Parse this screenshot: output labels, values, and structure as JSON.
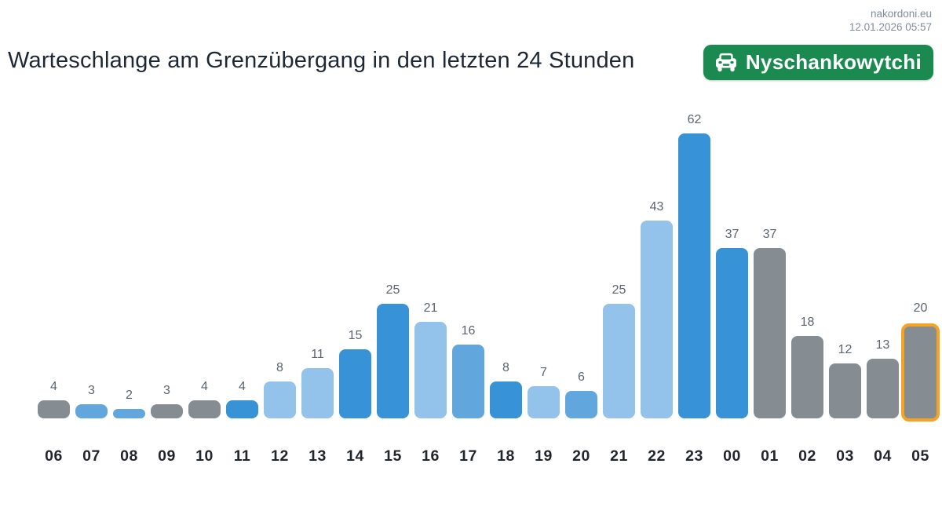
{
  "header": {
    "site": "nakordoni.eu",
    "timestamp": "12.01.2026 05:57"
  },
  "title": "Warteschlange am Grenzübergang in den letzten 24 Stunden",
  "badge": {
    "label": "Nyschankowytchi",
    "icon": "car-icon",
    "background_color": "#1a8a50",
    "text_color": "#ffffff"
  },
  "chart_data": {
    "type": "bar",
    "title": "Warteschlange am Grenzübergang in den letzten 24 Stunden",
    "xlabel": "",
    "ylabel": "",
    "ylim": [
      0,
      62
    ],
    "grid": false,
    "legend": false,
    "categories": [
      "06",
      "07",
      "08",
      "09",
      "10",
      "11",
      "12",
      "13",
      "14",
      "15",
      "16",
      "17",
      "18",
      "19",
      "20",
      "21",
      "22",
      "23",
      "00",
      "01",
      "02",
      "03",
      "04",
      "05"
    ],
    "values": [
      4,
      3,
      2,
      3,
      4,
      4,
      8,
      11,
      15,
      25,
      21,
      16,
      8,
      7,
      6,
      25,
      43,
      62,
      37,
      37,
      18,
      12,
      13,
      20
    ],
    "bar_colors": [
      "gray",
      "medium",
      "medium",
      "gray",
      "gray",
      "dark",
      "light",
      "light",
      "dark",
      "dark",
      "light",
      "medium",
      "dark",
      "light",
      "medium",
      "light",
      "light",
      "dark",
      "dark",
      "gray",
      "gray",
      "gray",
      "gray",
      "gray"
    ],
    "palette": {
      "gray": "#858c92",
      "light": "#93c3ea",
      "medium": "#61a7de",
      "dark": "#3793d6"
    },
    "highlight_index": 23,
    "highlight_border_color": "#f6a321",
    "value_label_color": "#5a6470",
    "axis_label_color": "#21262c"
  }
}
